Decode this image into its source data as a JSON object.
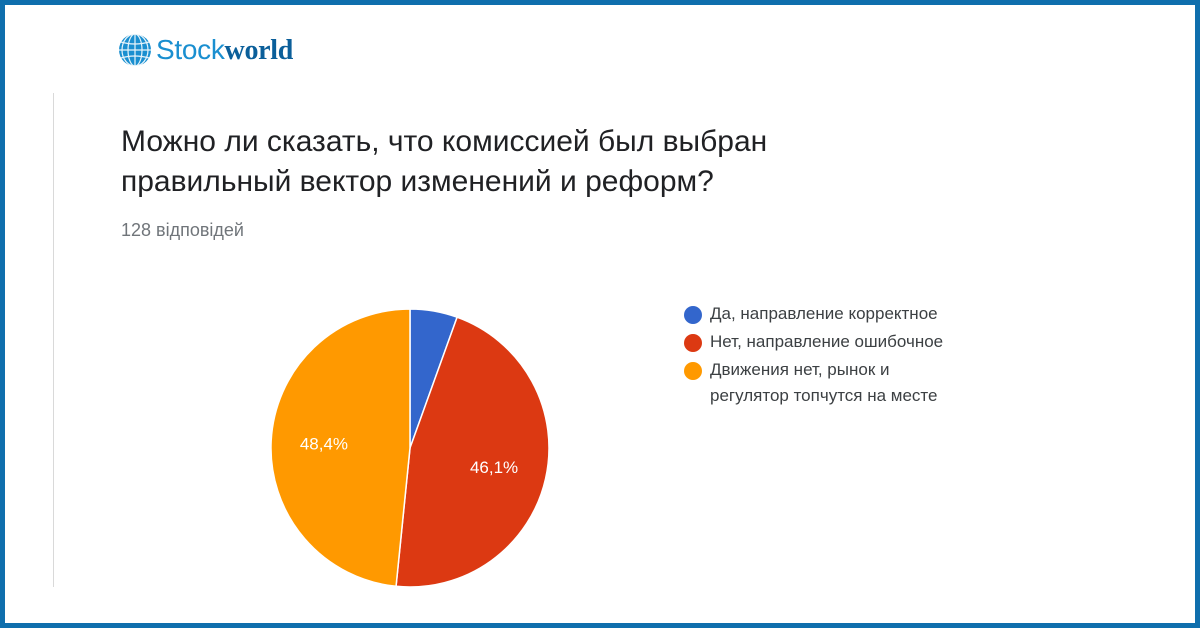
{
  "brand": {
    "stock": "Stock",
    "world": "world"
  },
  "header": {
    "title": "Можно ли сказать, что комиссией был выбран правильный вектор изменений и реформ?",
    "subtitle": "128 відповідей"
  },
  "colors": {
    "frame": "#0f6fad",
    "blue": "#3366cc",
    "red": "#dc3912",
    "orange": "#ff9900"
  },
  "chart_data": {
    "type": "pie",
    "start_angle_deg": 90,
    "slices": [
      {
        "name": "Да, направление корректное",
        "value": 5.5,
        "label": "",
        "color": "#3366cc"
      },
      {
        "name": "Нет, направление ошибочное",
        "value": 46.1,
        "label": "46,1%",
        "color": "#dc3912"
      },
      {
        "name": "Движения нет, рынок и регулятор топчутся на месте",
        "value": 48.4,
        "label": "48,4%",
        "color": "#ff9900"
      }
    ],
    "legend_position": "right"
  }
}
